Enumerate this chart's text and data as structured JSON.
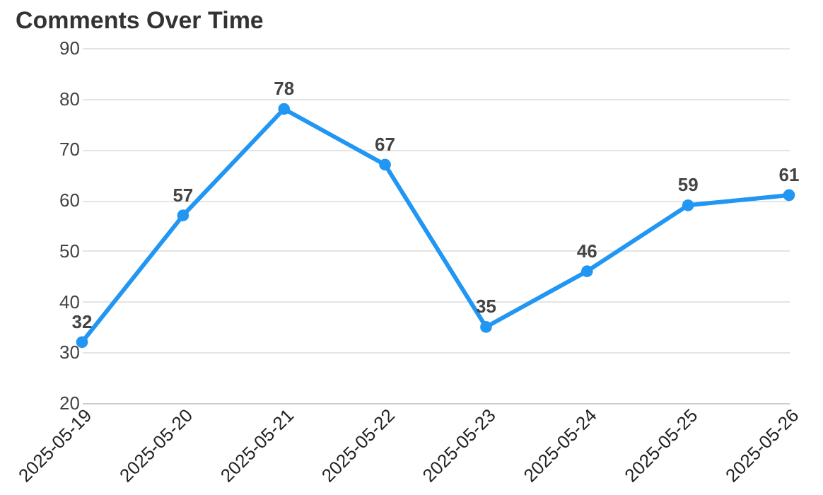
{
  "chart_data": {
    "type": "line",
    "title": "Comments Over Time",
    "categories": [
      "2025-05-19",
      "2025-05-20",
      "2025-05-21",
      "2025-05-22",
      "2025-05-23",
      "2025-05-24",
      "2025-05-25",
      "2025-05-26"
    ],
    "series": [
      {
        "color": "#2196f3",
        "values": [
          32,
          57,
          78,
          67,
          35,
          46,
          59,
          61
        ]
      }
    ],
    "ylim": [
      20,
      90
    ],
    "yticks": [
      20,
      30,
      40,
      50,
      60,
      70,
      80,
      90
    ],
    "grid": "y",
    "marker": "circle",
    "data_labels": true
  }
}
